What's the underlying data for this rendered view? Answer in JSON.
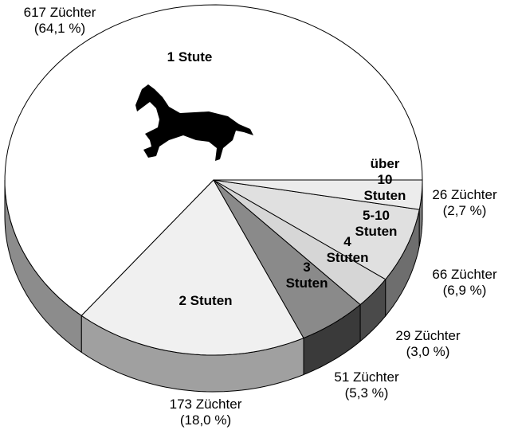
{
  "chart_data": {
    "type": "pie3d",
    "categories": [
      "1 Stute",
      "2 Stuten",
      "3 Stuten",
      "4 Stuten",
      "5-10 Stuten",
      "über 10 Stuten"
    ],
    "values": [
      617,
      173,
      51,
      29,
      66,
      26
    ],
    "value_labels": [
      "617 Züchter",
      "173 Züchter",
      "51 Züchter",
      "29 Züchter",
      "66 Züchter",
      "26 Züchter"
    ],
    "percents": [
      64.1,
      18.0,
      5.3,
      3.0,
      6.9,
      2.7
    ],
    "percent_labels": [
      "(64,1 %)",
      "(18,0 %)",
      "(5,3 %)",
      "(3,0 %)",
      "(6,9 %)",
      "(2,7 %)"
    ],
    "colors": [
      "#ffffff",
      "#f0f0f0",
      "#8a8a8a",
      "#d6d6d6",
      "#e0e0e0",
      "#ececec"
    ],
    "side_colors": [
      "#8c8c8c",
      "#a0a0a0",
      "#3a3a3a",
      "#4a4a4a",
      "#6e6e6e",
      "#7c7c7c"
    ]
  }
}
